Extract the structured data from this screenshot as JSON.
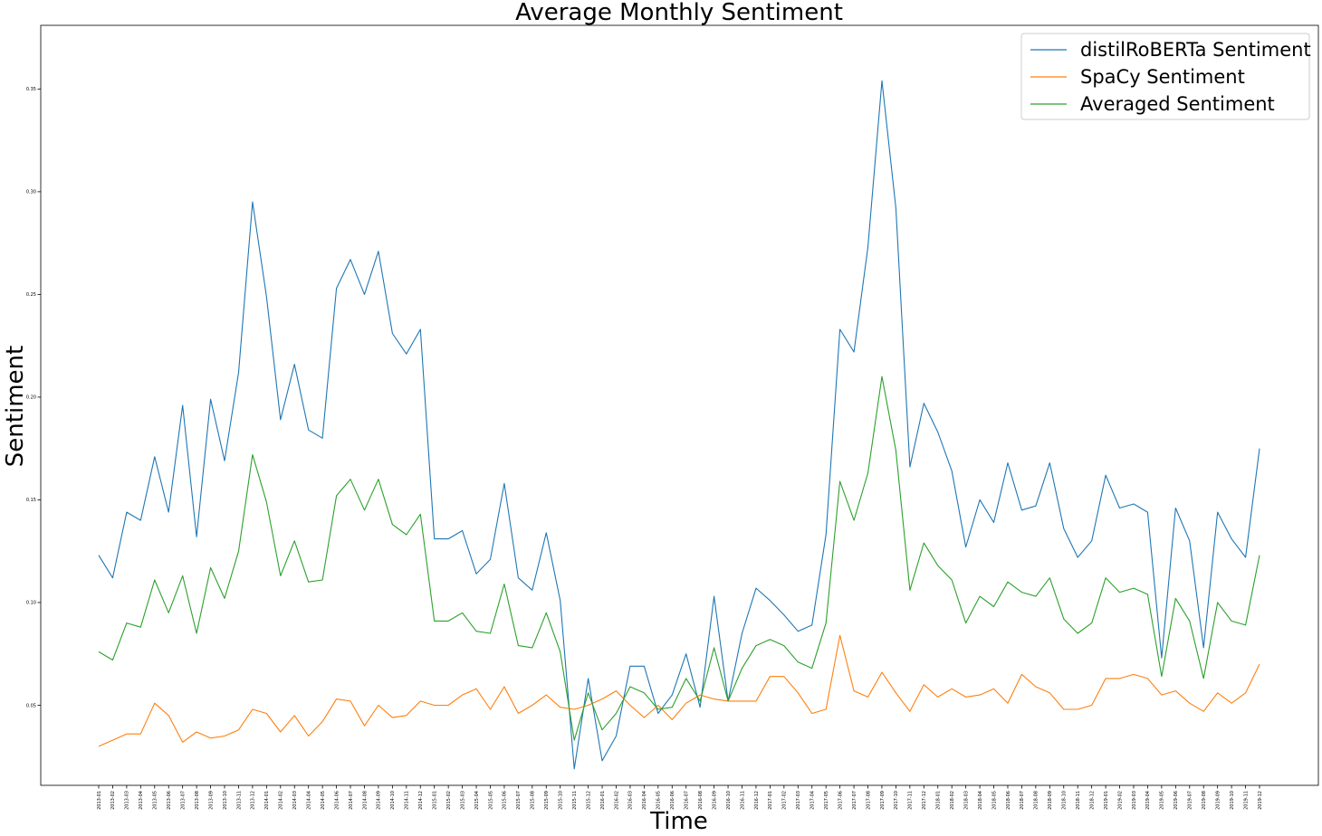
{
  "chart_data": {
    "type": "line",
    "title": "Average Monthly Sentiment",
    "xlabel": "Time",
    "ylabel": "Sentiment",
    "ylim": [
      0.011,
      0.381
    ],
    "yticks": [
      0.05,
      0.1,
      0.15,
      0.2,
      0.25,
      0.3,
      0.35
    ],
    "ytick_labels": [
      "0.05",
      "0.10",
      "0.15",
      "0.20",
      "0.25",
      "0.30",
      "0.35"
    ],
    "grid": false,
    "legend_position": "top-right",
    "x": [
      "2013-01",
      "2013-02",
      "2013-03",
      "2013-04",
      "2013-05",
      "2013-06",
      "2013-07",
      "2013-08",
      "2013-09",
      "2013-10",
      "2013-11",
      "2013-12",
      "2014-01",
      "2014-02",
      "2014-03",
      "2014-04",
      "2014-05",
      "2014-06",
      "2014-07",
      "2014-08",
      "2014-09",
      "2014-10",
      "2014-11",
      "2014-12",
      "2015-01",
      "2015-02",
      "2015-03",
      "2015-04",
      "2015-05",
      "2015-06",
      "2015-07",
      "2015-08",
      "2015-09",
      "2015-10",
      "2015-11",
      "2015-12",
      "2016-01",
      "2016-02",
      "2016-03",
      "2016-04",
      "2016-05",
      "2016-06",
      "2016-07",
      "2016-08",
      "2016-09",
      "2016-10",
      "2016-11",
      "2016-12",
      "2017-01",
      "2017-02",
      "2017-03",
      "2017-04",
      "2017-05",
      "2017-06",
      "2017-07",
      "2017-08",
      "2017-09",
      "2017-10",
      "2017-11",
      "2017-12",
      "2018-01",
      "2018-02",
      "2018-03",
      "2018-04",
      "2018-05",
      "2018-06",
      "2018-07",
      "2018-08",
      "2018-09",
      "2018-10",
      "2018-11",
      "2018-12",
      "2019-01",
      "2019-02",
      "2019-03",
      "2019-04",
      "2019-05",
      "2019-06",
      "2019-07",
      "2019-08",
      "2019-09",
      "2019-10",
      "2019-11",
      "2019-12"
    ],
    "series": [
      {
        "name": "distilRoBERTa Sentiment",
        "color": "#1f77b4",
        "values": [
          0.123,
          0.112,
          0.144,
          0.14,
          0.171,
          0.144,
          0.196,
          0.132,
          0.199,
          0.169,
          0.212,
          0.295,
          0.249,
          0.189,
          0.216,
          0.184,
          0.18,
          0.253,
          0.267,
          0.25,
          0.271,
          0.231,
          0.221,
          0.233,
          0.131,
          0.131,
          0.135,
          0.114,
          0.121,
          0.158,
          0.112,
          0.106,
          0.134,
          0.101,
          0.019,
          0.063,
          0.023,
          0.035,
          0.069,
          0.069,
          0.046,
          0.055,
          0.075,
          0.049,
          0.103,
          0.052,
          0.085,
          0.107,
          0.101,
          0.094,
          0.086,
          0.089,
          0.133,
          0.233,
          0.222,
          0.273,
          0.354,
          0.292,
          0.166,
          0.197,
          0.183,
          0.164,
          0.127,
          0.15,
          0.139,
          0.168,
          0.145,
          0.147,
          0.168,
          0.136,
          0.122,
          0.13,
          0.162,
          0.146,
          0.148,
          0.144,
          0.073,
          0.146,
          0.13,
          0.078,
          0.144,
          0.131,
          0.122,
          0.175
        ]
      },
      {
        "name": "SpaCy Sentiment",
        "color": "#ff7f0e",
        "values": [
          0.03,
          0.033,
          0.036,
          0.036,
          0.051,
          0.045,
          0.032,
          0.037,
          0.034,
          0.035,
          0.038,
          0.048,
          0.046,
          0.037,
          0.045,
          0.035,
          0.042,
          0.053,
          0.052,
          0.04,
          0.05,
          0.044,
          0.045,
          0.052,
          0.05,
          0.05,
          0.055,
          0.058,
          0.048,
          0.059,
          0.046,
          0.05,
          0.055,
          0.049,
          0.048,
          0.05,
          0.053,
          0.057,
          0.05,
          0.044,
          0.05,
          0.043,
          0.051,
          0.055,
          0.053,
          0.052,
          0.052,
          0.052,
          0.064,
          0.064,
          0.056,
          0.046,
          0.048,
          0.084,
          0.057,
          0.054,
          0.066,
          0.056,
          0.047,
          0.06,
          0.054,
          0.058,
          0.054,
          0.055,
          0.058,
          0.051,
          0.065,
          0.059,
          0.056,
          0.048,
          0.048,
          0.05,
          0.063,
          0.063,
          0.065,
          0.063,
          0.055,
          0.057,
          0.051,
          0.047,
          0.056,
          0.051,
          0.056,
          0.07
        ]
      },
      {
        "name": "Averaged Sentiment",
        "color": "#2ca02c",
        "values": [
          0.076,
          0.072,
          0.09,
          0.088,
          0.111,
          0.095,
          0.113,
          0.085,
          0.117,
          0.102,
          0.125,
          0.172,
          0.149,
          0.113,
          0.13,
          0.11,
          0.111,
          0.152,
          0.16,
          0.145,
          0.16,
          0.138,
          0.133,
          0.143,
          0.091,
          0.091,
          0.095,
          0.086,
          0.085,
          0.109,
          0.079,
          0.078,
          0.095,
          0.076,
          0.033,
          0.056,
          0.038,
          0.046,
          0.059,
          0.056,
          0.048,
          0.049,
          0.063,
          0.052,
          0.078,
          0.052,
          0.068,
          0.079,
          0.082,
          0.079,
          0.071,
          0.068,
          0.09,
          0.159,
          0.14,
          0.163,
          0.21,
          0.174,
          0.106,
          0.129,
          0.118,
          0.111,
          0.09,
          0.103,
          0.098,
          0.11,
          0.105,
          0.103,
          0.112,
          0.092,
          0.085,
          0.09,
          0.112,
          0.105,
          0.107,
          0.104,
          0.064,
          0.102,
          0.091,
          0.063,
          0.1,
          0.091,
          0.089,
          0.123
        ]
      }
    ]
  }
}
